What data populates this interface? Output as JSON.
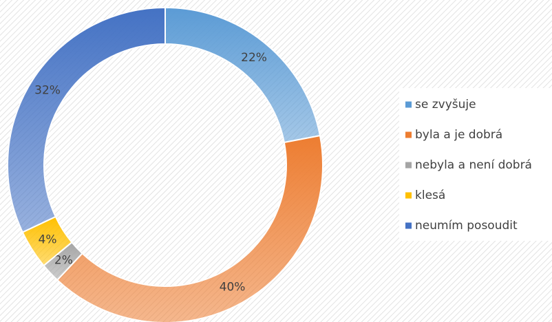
{
  "chart_data": {
    "type": "donut",
    "categories": [
      "se zvyšuje",
      "byla a je dobrá",
      "nebyla a není dobrá",
      "klesá",
      "neumím posoudit"
    ],
    "values": [
      22,
      40,
      2,
      4,
      32
    ],
    "value_labels": [
      "22%",
      "40%",
      "2%",
      "4%",
      "32%"
    ],
    "colors": [
      "#5b9bd5",
      "#ed7d31",
      "#a5a5a5",
      "#ffc000",
      "#4472c4"
    ],
    "legend": "right"
  }
}
